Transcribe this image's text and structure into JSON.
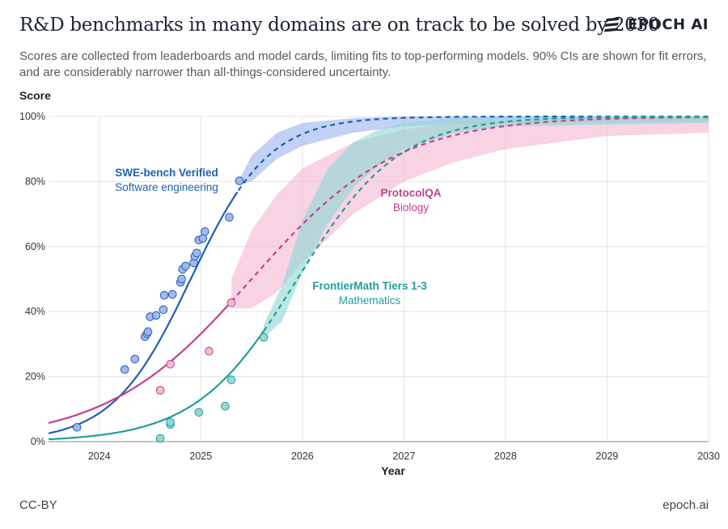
{
  "header": {
    "title": "R&D benchmarks in many domains are on track to be solved by 2030",
    "subtitle": "Scores are collected from leaderboards and model cards, limiting fits to top-performing models. 90% CIs are shown for fit errors, and are considerably narrower than all-things-considered uncertainty.",
    "logo_text": "EPOCH AI"
  },
  "footer": {
    "license": "CC-BY",
    "site": "epoch.ai"
  },
  "chart_data": {
    "type": "scatter",
    "xlabel": "Year",
    "ylabel": "Score",
    "xlim": [
      2023.5,
      2030
    ],
    "ylim": [
      0,
      100
    ],
    "x_ticks": [
      2024,
      2025,
      2026,
      2027,
      2028,
      2029,
      2030
    ],
    "y_ticks": [
      0,
      20,
      40,
      60,
      80,
      100
    ],
    "y_tick_labels": [
      "0%",
      "20%",
      "40%",
      "60%",
      "80%",
      "100%"
    ],
    "grid": true,
    "series": [
      {
        "name": "SWE-bench Verified",
        "domain": "Software engineering",
        "color": "#1f5fb4",
        "band_color": "#9db5ee",
        "fit": {
          "midpoint": 2024.9,
          "rate": 2.6,
          "observed_until": 2025.37
        },
        "ci_band": [
          [
            2025.37,
            79,
            80
          ],
          [
            2025.5,
            80,
            88
          ],
          [
            2025.75,
            87,
            95
          ],
          [
            2026.0,
            91,
            98
          ],
          [
            2026.5,
            95,
            99.5
          ],
          [
            2027.0,
            97,
            100
          ],
          [
            2028.0,
            98,
            100
          ],
          [
            2030.0,
            98.5,
            100
          ]
        ],
        "points": [
          [
            2023.78,
            4.4
          ],
          [
            2024.25,
            22.2
          ],
          [
            2024.35,
            25.4
          ],
          [
            2024.45,
            32.3
          ],
          [
            2024.47,
            33.2
          ],
          [
            2024.48,
            33.8
          ],
          [
            2024.5,
            38.4
          ],
          [
            2024.56,
            38.8
          ],
          [
            2024.63,
            40.6
          ],
          [
            2024.64,
            45.0
          ],
          [
            2024.72,
            45.3
          ],
          [
            2024.8,
            49.0
          ],
          [
            2024.81,
            50.0
          ],
          [
            2024.82,
            53.0
          ],
          [
            2024.85,
            54.0
          ],
          [
            2024.93,
            55.0
          ],
          [
            2024.94,
            57.0
          ],
          [
            2024.96,
            58.0
          ],
          [
            2024.98,
            62.0
          ],
          [
            2025.02,
            62.5
          ],
          [
            2025.04,
            64.6
          ],
          [
            2025.28,
            69.0
          ],
          [
            2025.38,
            80.2
          ]
        ]
      },
      {
        "name": "ProtocolQA",
        "domain": "Biology",
        "color": "#c2418e",
        "band_color": "#f3b8d3",
        "fit": {
          "midpoint": 2025.5,
          "rate": 1.4,
          "observed_until": 2025.3
        },
        "ci_band": [
          [
            2025.3,
            41,
            50
          ],
          [
            2025.5,
            41,
            65
          ],
          [
            2025.75,
            46,
            76
          ],
          [
            2026.0,
            55,
            84
          ],
          [
            2026.5,
            70,
            92
          ],
          [
            2027.0,
            80,
            96
          ],
          [
            2027.5,
            86,
            98
          ],
          [
            2028.0,
            90,
            99
          ],
          [
            2029.0,
            94,
            99.5
          ],
          [
            2030.0,
            95,
            100
          ]
        ],
        "points": [
          [
            2024.6,
            15.8
          ],
          [
            2024.7,
            23.8
          ],
          [
            2025.08,
            27.8
          ],
          [
            2025.3,
            42.7
          ]
        ]
      },
      {
        "name": "FrontierMath Tiers 1-3",
        "domain": "Mathematics",
        "color": "#1f9e9b",
        "band_color": "#8ed8d4",
        "fit": {
          "midpoint": 2025.95,
          "rate": 2.0,
          "observed_until": 2025.62
        },
        "ci_band": [
          [
            2025.62,
            32,
            36
          ],
          [
            2025.8,
            37,
            48
          ],
          [
            2026.0,
            52,
            68
          ],
          [
            2026.25,
            67,
            84
          ],
          [
            2026.5,
            78,
            92
          ],
          [
            2026.75,
            85,
            96
          ],
          [
            2027.0,
            90,
            98
          ],
          [
            2027.5,
            95,
            99.5
          ],
          [
            2028.0,
            97,
            100
          ],
          [
            2030.0,
            98,
            100
          ]
        ],
        "points": [
          [
            2024.6,
            1.0
          ],
          [
            2024.7,
            5.3
          ],
          [
            2024.7,
            6.0
          ],
          [
            2024.98,
            9.0
          ],
          [
            2025.24,
            10.9
          ],
          [
            2025.3,
            19.0
          ],
          [
            2025.62,
            32.1
          ]
        ]
      }
    ]
  }
}
